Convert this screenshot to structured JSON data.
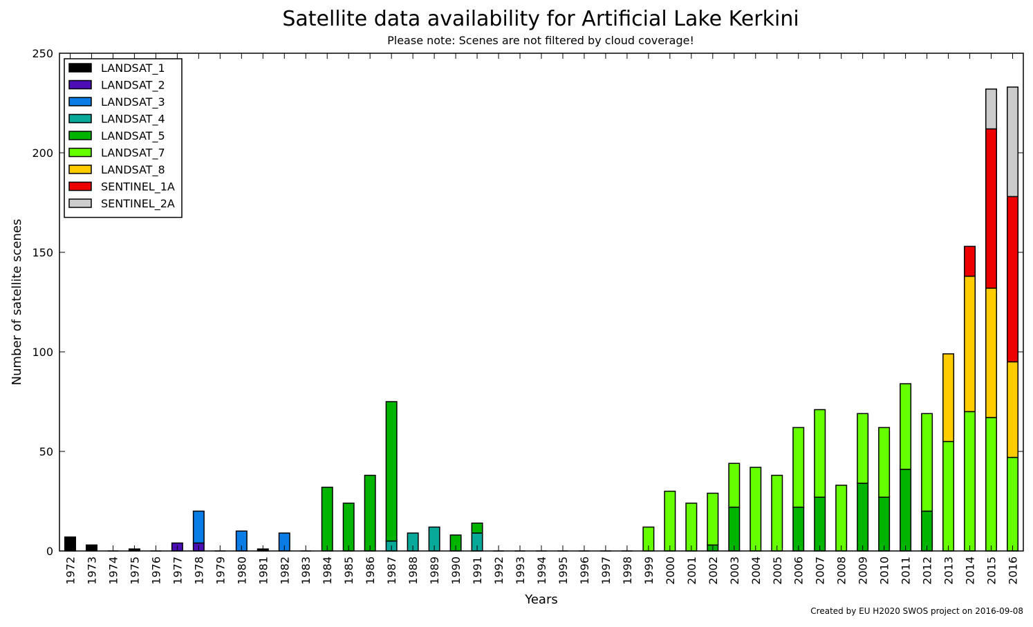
{
  "title": "Satellite data availability for Artificial Lake Kerkini",
  "subtitle": "Please note: Scenes are not filtered by cloud coverage!",
  "credit": "Created by EU H2020 SWOS project on 2016-09-08",
  "chart_data": {
    "type": "bar",
    "stacked": true,
    "title": "Satellite data availability for Artificial Lake Kerkini",
    "xlabel": "Years",
    "ylabel": "Number of satellite scenes",
    "ylim": [
      0,
      250
    ],
    "yticks": [
      0,
      50,
      100,
      150,
      200,
      250
    ],
    "legend_position": "top-left",
    "grid": false,
    "categories": [
      "1972",
      "1973",
      "1974",
      "1975",
      "1976",
      "1977",
      "1978",
      "1979",
      "1980",
      "1981",
      "1982",
      "1983",
      "1984",
      "1985",
      "1986",
      "1987",
      "1988",
      "1989",
      "1990",
      "1991",
      "1992",
      "1993",
      "1994",
      "1995",
      "1996",
      "1997",
      "1998",
      "1999",
      "2000",
      "2001",
      "2002",
      "2003",
      "2004",
      "2005",
      "2006",
      "2007",
      "2008",
      "2009",
      "2010",
      "2011",
      "2012",
      "2013",
      "2014",
      "2015",
      "2016"
    ],
    "series": [
      {
        "name": "LANDSAT_1",
        "color": "#000000",
        "values": [
          7,
          3,
          0,
          1,
          0,
          0,
          0,
          0,
          0,
          1,
          0,
          0,
          0,
          0,
          0,
          0,
          0,
          0,
          0,
          0,
          0,
          0,
          0,
          0,
          0,
          0,
          0,
          0,
          0,
          0,
          0,
          0,
          0,
          0,
          0,
          0,
          0,
          0,
          0,
          0,
          0,
          0,
          0,
          0,
          0
        ]
      },
      {
        "name": "LANDSAT_2",
        "color": "#4b0fb5",
        "values": [
          0,
          0,
          0,
          0,
          0,
          4,
          4,
          0,
          0,
          0,
          0,
          0,
          0,
          0,
          0,
          0,
          0,
          0,
          0,
          0,
          0,
          0,
          0,
          0,
          0,
          0,
          0,
          0,
          0,
          0,
          0,
          0,
          0,
          0,
          0,
          0,
          0,
          0,
          0,
          0,
          0,
          0,
          0,
          0,
          0
        ]
      },
      {
        "name": "LANDSAT_3",
        "color": "#0a7ce6",
        "values": [
          0,
          0,
          0,
          0,
          0,
          0,
          16,
          0,
          10,
          0,
          9,
          0,
          0,
          0,
          0,
          0,
          0,
          0,
          0,
          0,
          0,
          0,
          0,
          0,
          0,
          0,
          0,
          0,
          0,
          0,
          0,
          0,
          0,
          0,
          0,
          0,
          0,
          0,
          0,
          0,
          0,
          0,
          0,
          0,
          0
        ]
      },
      {
        "name": "LANDSAT_4",
        "color": "#09a99a",
        "values": [
          0,
          0,
          0,
          0,
          0,
          0,
          0,
          0,
          0,
          0,
          0,
          0,
          0,
          0,
          0,
          5,
          9,
          12,
          0,
          9,
          0,
          0,
          0,
          0,
          0,
          0,
          0,
          0,
          0,
          0,
          0,
          0,
          0,
          0,
          0,
          0,
          0,
          0,
          0,
          0,
          0,
          0,
          0,
          0,
          0
        ]
      },
      {
        "name": "LANDSAT_5",
        "color": "#00b400",
        "values": [
          0,
          0,
          0,
          0,
          0,
          0,
          0,
          0,
          0,
          0,
          0,
          0,
          32,
          24,
          38,
          70,
          0,
          0,
          8,
          5,
          0,
          0,
          0,
          0,
          0,
          0,
          0,
          0,
          0,
          0,
          3,
          22,
          0,
          0,
          22,
          27,
          0,
          34,
          27,
          41,
          20,
          0,
          0,
          0,
          0
        ]
      },
      {
        "name": "LANDSAT_7",
        "color": "#66ff00",
        "values": [
          0,
          0,
          0,
          0,
          0,
          0,
          0,
          0,
          0,
          0,
          0,
          0,
          0,
          0,
          0,
          0,
          0,
          0,
          0,
          0,
          0,
          0,
          0,
          0,
          0,
          0,
          0,
          12,
          30,
          24,
          26,
          22,
          42,
          38,
          40,
          44,
          33,
          35,
          35,
          43,
          49,
          55,
          70,
          67,
          47
        ]
      },
      {
        "name": "LANDSAT_8",
        "color": "#ffcc00",
        "values": [
          0,
          0,
          0,
          0,
          0,
          0,
          0,
          0,
          0,
          0,
          0,
          0,
          0,
          0,
          0,
          0,
          0,
          0,
          0,
          0,
          0,
          0,
          0,
          0,
          0,
          0,
          0,
          0,
          0,
          0,
          0,
          0,
          0,
          0,
          0,
          0,
          0,
          0,
          0,
          0,
          0,
          44,
          68,
          65,
          48
        ]
      },
      {
        "name": "SENTINEL_1A",
        "color": "#ee0000",
        "values": [
          0,
          0,
          0,
          0,
          0,
          0,
          0,
          0,
          0,
          0,
          0,
          0,
          0,
          0,
          0,
          0,
          0,
          0,
          0,
          0,
          0,
          0,
          0,
          0,
          0,
          0,
          0,
          0,
          0,
          0,
          0,
          0,
          0,
          0,
          0,
          0,
          0,
          0,
          0,
          0,
          0,
          0,
          15,
          80,
          83
        ]
      },
      {
        "name": "SENTINEL_2A",
        "color": "#cccccc",
        "values": [
          0,
          0,
          0,
          0,
          0,
          0,
          0,
          0,
          0,
          0,
          0,
          0,
          0,
          0,
          0,
          0,
          0,
          0,
          0,
          0,
          0,
          0,
          0,
          0,
          0,
          0,
          0,
          0,
          0,
          0,
          0,
          0,
          0,
          0,
          0,
          0,
          0,
          0,
          0,
          0,
          0,
          0,
          0,
          20,
          55
        ]
      }
    ]
  }
}
